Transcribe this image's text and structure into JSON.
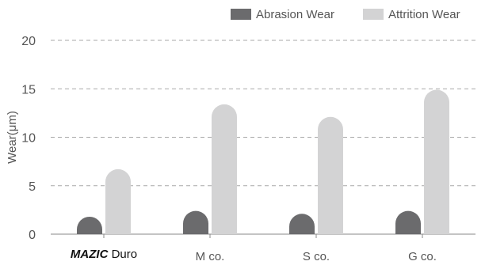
{
  "chart_data": {
    "type": "bar",
    "ylabel": "Wear(μm)",
    "ylim": [
      0,
      20
    ],
    "yticks": [
      0,
      5,
      10,
      15,
      20
    ],
    "grid": true,
    "legend_position": "top-right",
    "categories": [
      {
        "brand": "MAZIC",
        "label": "Duro"
      },
      {
        "brand": "",
        "label": "M co."
      },
      {
        "brand": "",
        "label": "S co."
      },
      {
        "brand": "",
        "label": "G co."
      }
    ],
    "series": [
      {
        "name": "Abrasion Wear",
        "color": "#6b6b6d",
        "values": [
          1.8,
          2.4,
          2.1,
          2.4
        ]
      },
      {
        "name": "Attrition Wear",
        "color": "#d3d3d4",
        "values": [
          6.7,
          13.4,
          12.1,
          14.9
        ]
      }
    ]
  }
}
